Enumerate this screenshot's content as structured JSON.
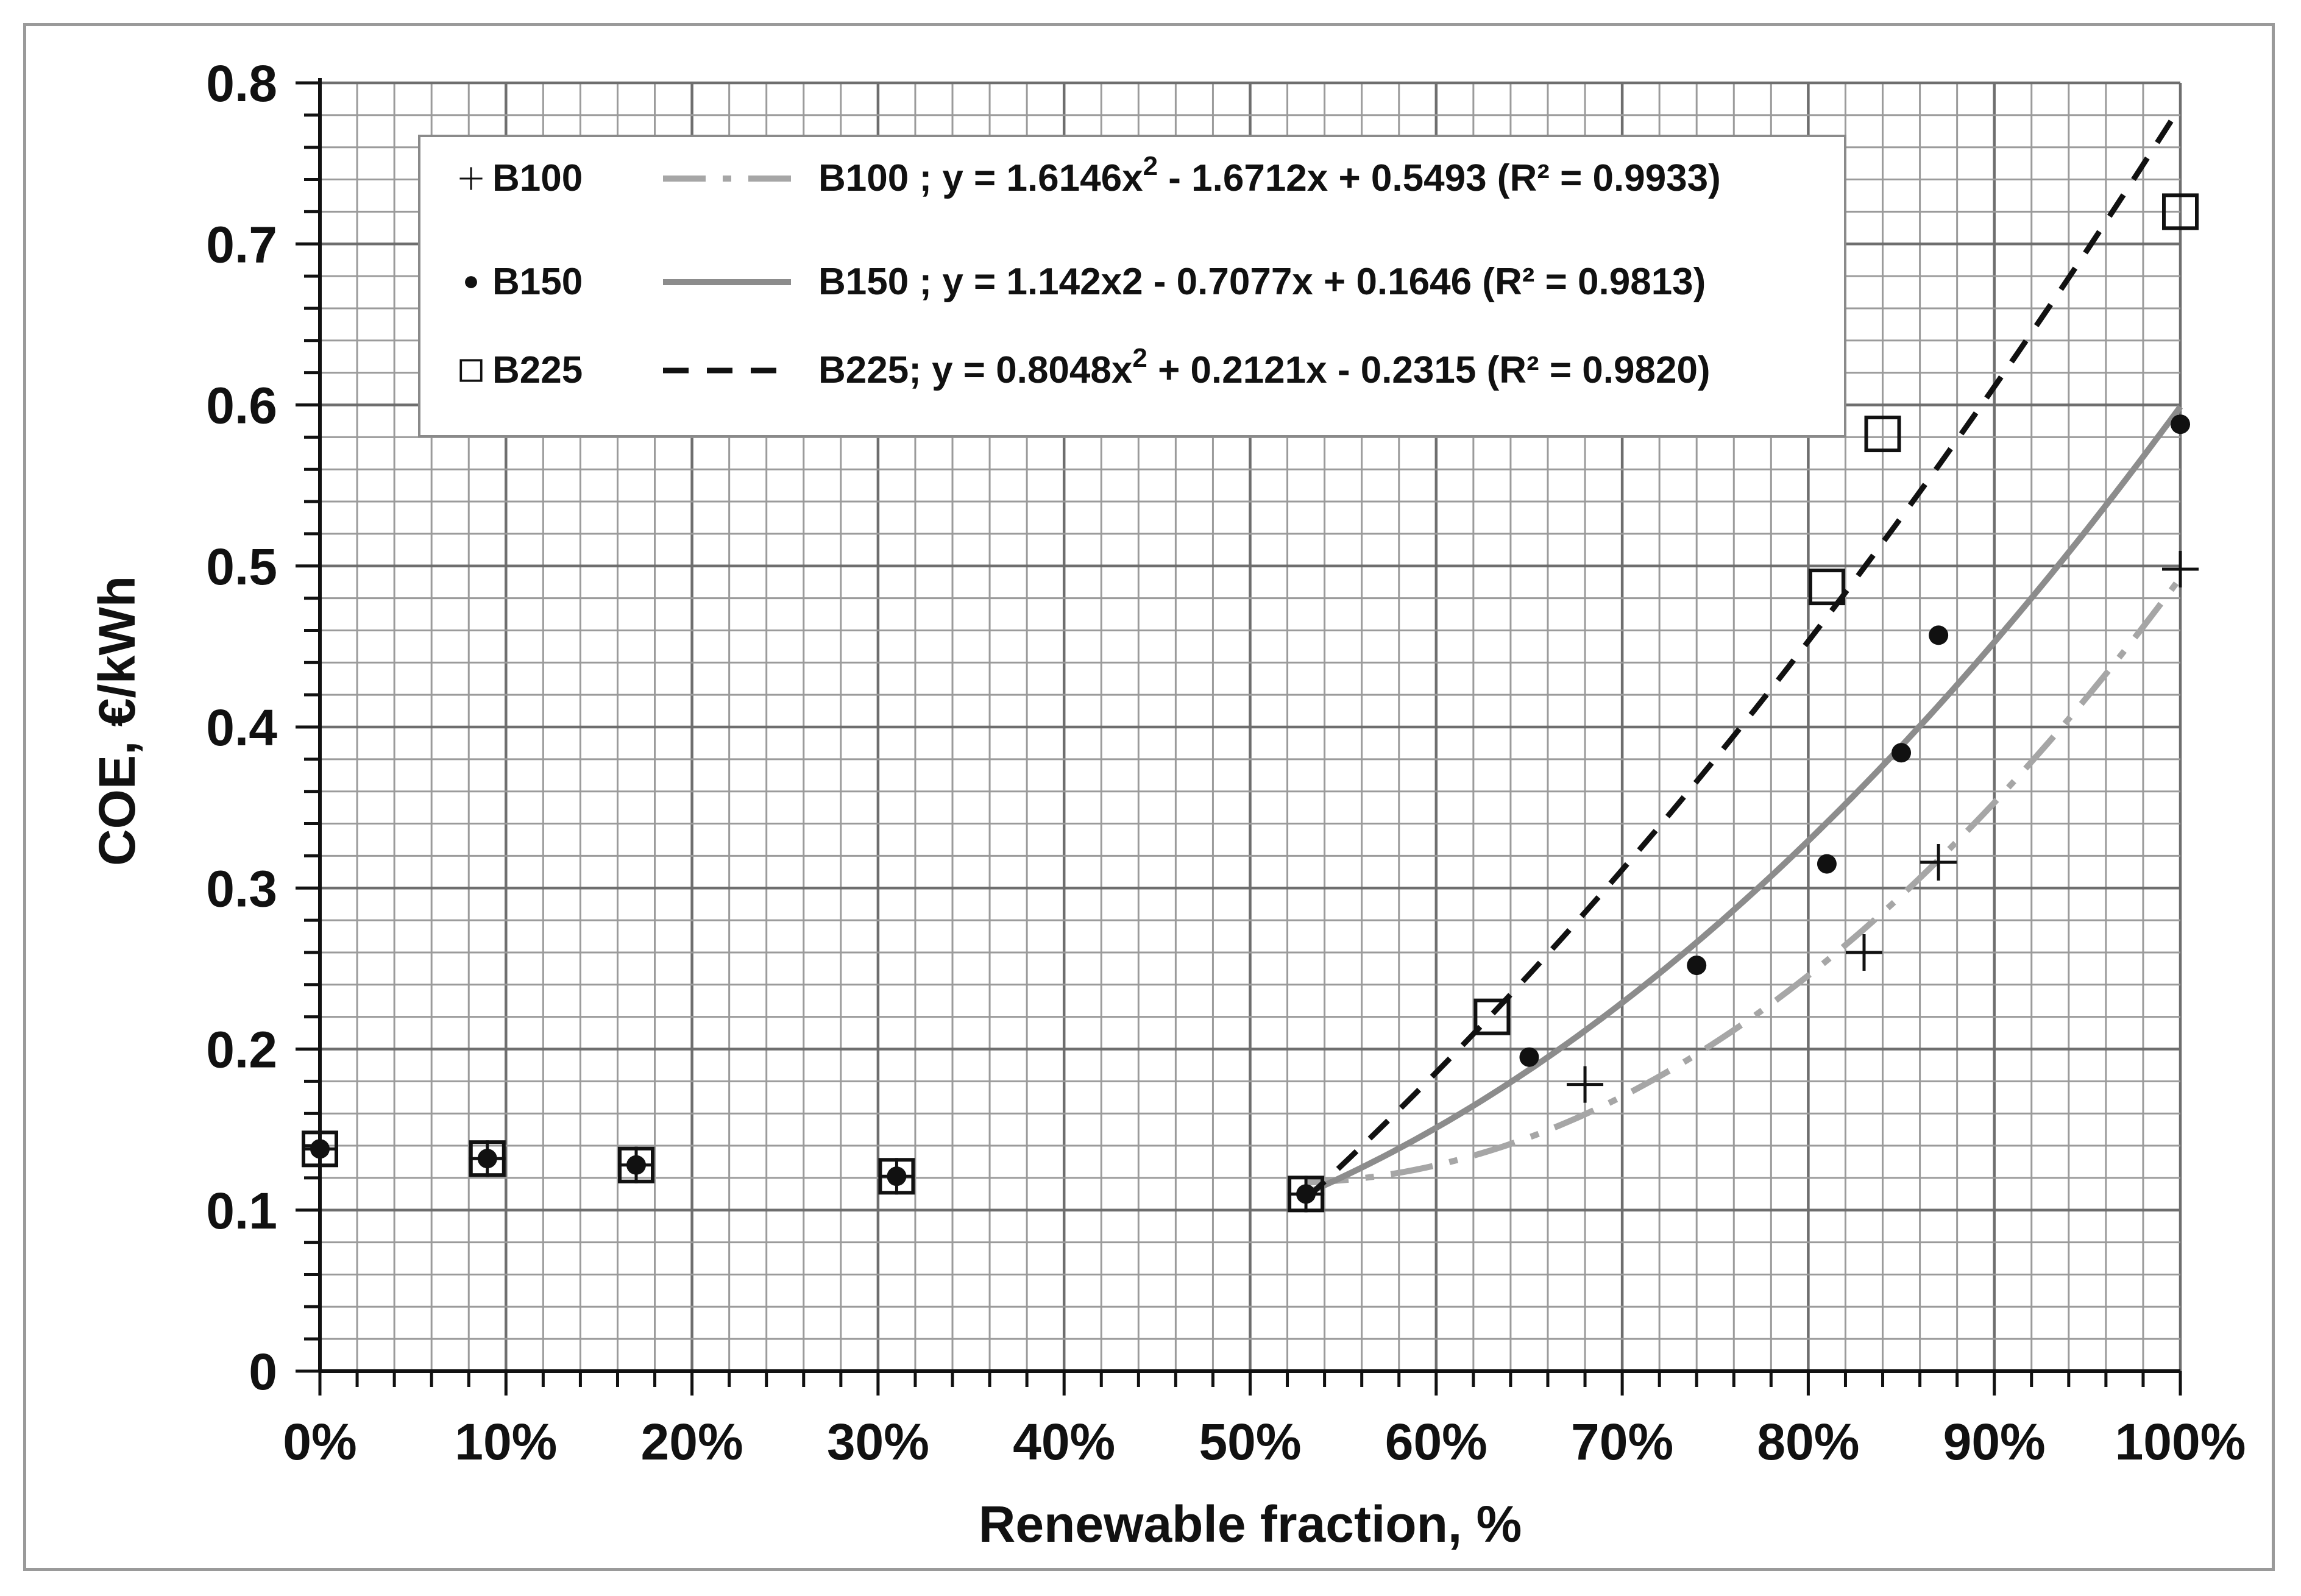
{
  "chart_data": {
    "type": "scatter",
    "xlabel": "Renewable fraction, %",
    "ylabel": "COE, €/kWh",
    "xlim": [
      0,
      1
    ],
    "ylim": [
      0,
      0.8
    ],
    "x_ticks": [
      "0%",
      "10%",
      "20%",
      "30%",
      "40%",
      "50%",
      "60%",
      "70%",
      "80%",
      "90%",
      "100%"
    ],
    "y_ticks": [
      "0",
      "0.1",
      "0.2",
      "0.3",
      "0.4",
      "0.5",
      "0.6",
      "0.7",
      "0.8"
    ],
    "grid": true,
    "legend_position": "top-left",
    "series": [
      {
        "name": "B100",
        "marker": "plus",
        "color": "#111111",
        "points": [
          [
            0,
            0.138
          ],
          [
            0.09,
            0.132
          ],
          [
            0.17,
            0.128
          ],
          [
            0.31,
            0.121
          ],
          [
            0.53,
            0.11
          ],
          [
            0.68,
            0.178
          ],
          [
            0.83,
            0.26
          ],
          [
            0.87,
            0.316
          ],
          [
            1.0,
            0.498
          ]
        ]
      },
      {
        "name": "B150",
        "marker": "dot",
        "color": "#111111",
        "points": [
          [
            0,
            0.138
          ],
          [
            0.09,
            0.132
          ],
          [
            0.17,
            0.128
          ],
          [
            0.31,
            0.121
          ],
          [
            0.53,
            0.11
          ],
          [
            0.65,
            0.195
          ],
          [
            0.74,
            0.252
          ],
          [
            0.81,
            0.315
          ],
          [
            0.85,
            0.384
          ],
          [
            0.87,
            0.457
          ],
          [
            1.0,
            0.588
          ]
        ]
      },
      {
        "name": "B225",
        "marker": "open-square",
        "color": "#111111",
        "points": [
          [
            0,
            0.138
          ],
          [
            0.09,
            0.132
          ],
          [
            0.17,
            0.128
          ],
          [
            0.31,
            0.121
          ],
          [
            0.53,
            0.11
          ],
          [
            0.63,
            0.22
          ],
          [
            0.81,
            0.487
          ],
          [
            0.84,
            0.582
          ],
          [
            1.0,
            0.72
          ]
        ]
      }
    ],
    "trendlines": [
      {
        "label": "B100 ; y = 1.6146x",
        "label_sup": "2",
        "label_rest": " - 1.6712x + 0.5493  (R² = 0.9933)",
        "coefficients": [
          1.6146,
          -1.6712,
          0.5493
        ],
        "x_range": [
          0.53,
          1.0
        ],
        "style": "dash-dot",
        "color": "#a6a6a6"
      },
      {
        "label": "B150 ; y = 1.142x2 - 0.7077x + 0.1646 (R² = 0.9813)",
        "label_sup": "",
        "label_rest": "",
        "coefficients": [
          1.142,
          -0.7077,
          0.1646
        ],
        "x_range": [
          0.53,
          1.0
        ],
        "style": "solid",
        "color": "#8c8c8c"
      },
      {
        "label": "B225; y = 0.8048x",
        "label_sup": "2",
        "label_rest": " + 0.2121x - 0.2315 (R² = 0.9820)",
        "coefficients": [
          0.8048,
          0.2121,
          -0.2315
        ],
        "x_range": [
          0.53,
          1.0
        ],
        "style": "dashed",
        "color": "#111111"
      }
    ]
  }
}
